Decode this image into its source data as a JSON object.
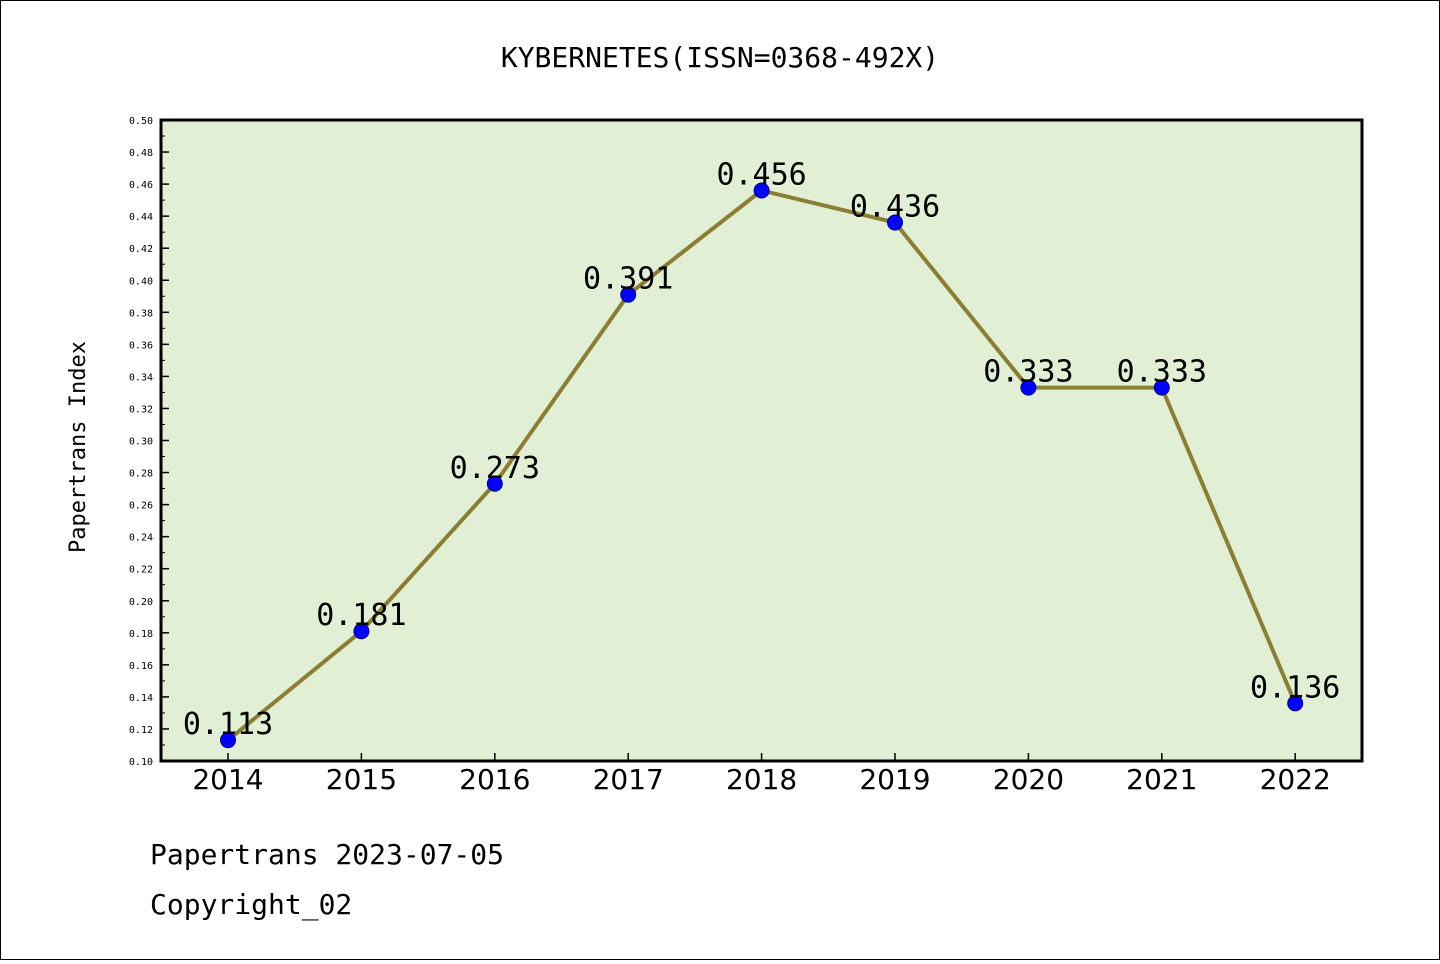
{
  "chart_data": {
    "type": "line",
    "title": "KYBERNETES(ISSN=0368-492X)",
    "xlabel": "",
    "ylabel": "Papertrans Index",
    "categories": [
      "2014",
      "2015",
      "2016",
      "2017",
      "2018",
      "2019",
      "2020",
      "2021",
      "2022"
    ],
    "values": [
      0.113,
      0.181,
      0.273,
      0.391,
      0.456,
      0.436,
      0.333,
      0.333,
      0.136
    ],
    "data_labels": [
      "0.113",
      "0.181",
      "0.273",
      "0.391",
      "0.456",
      "0.436",
      "0.333",
      "0.333",
      "0.136"
    ],
    "ylim": [
      0.1,
      0.5
    ],
    "yticks": [
      "0.10",
      "0.12",
      "0.14",
      "0.16",
      "0.18",
      "0.20",
      "0.22",
      "0.24",
      "0.26",
      "0.28",
      "0.30",
      "0.32",
      "0.34",
      "0.36",
      "0.38",
      "0.40",
      "0.42",
      "0.44",
      "0.46",
      "0.48",
      "0.50"
    ],
    "grid": false,
    "legend": "none",
    "colors": {
      "plot_background": "#e1efd5",
      "line": "#8b7d32",
      "marker": "#0000ff"
    }
  },
  "footer": {
    "line1": "Papertrans 2023-07-05",
    "line2": "Copyright_02"
  }
}
